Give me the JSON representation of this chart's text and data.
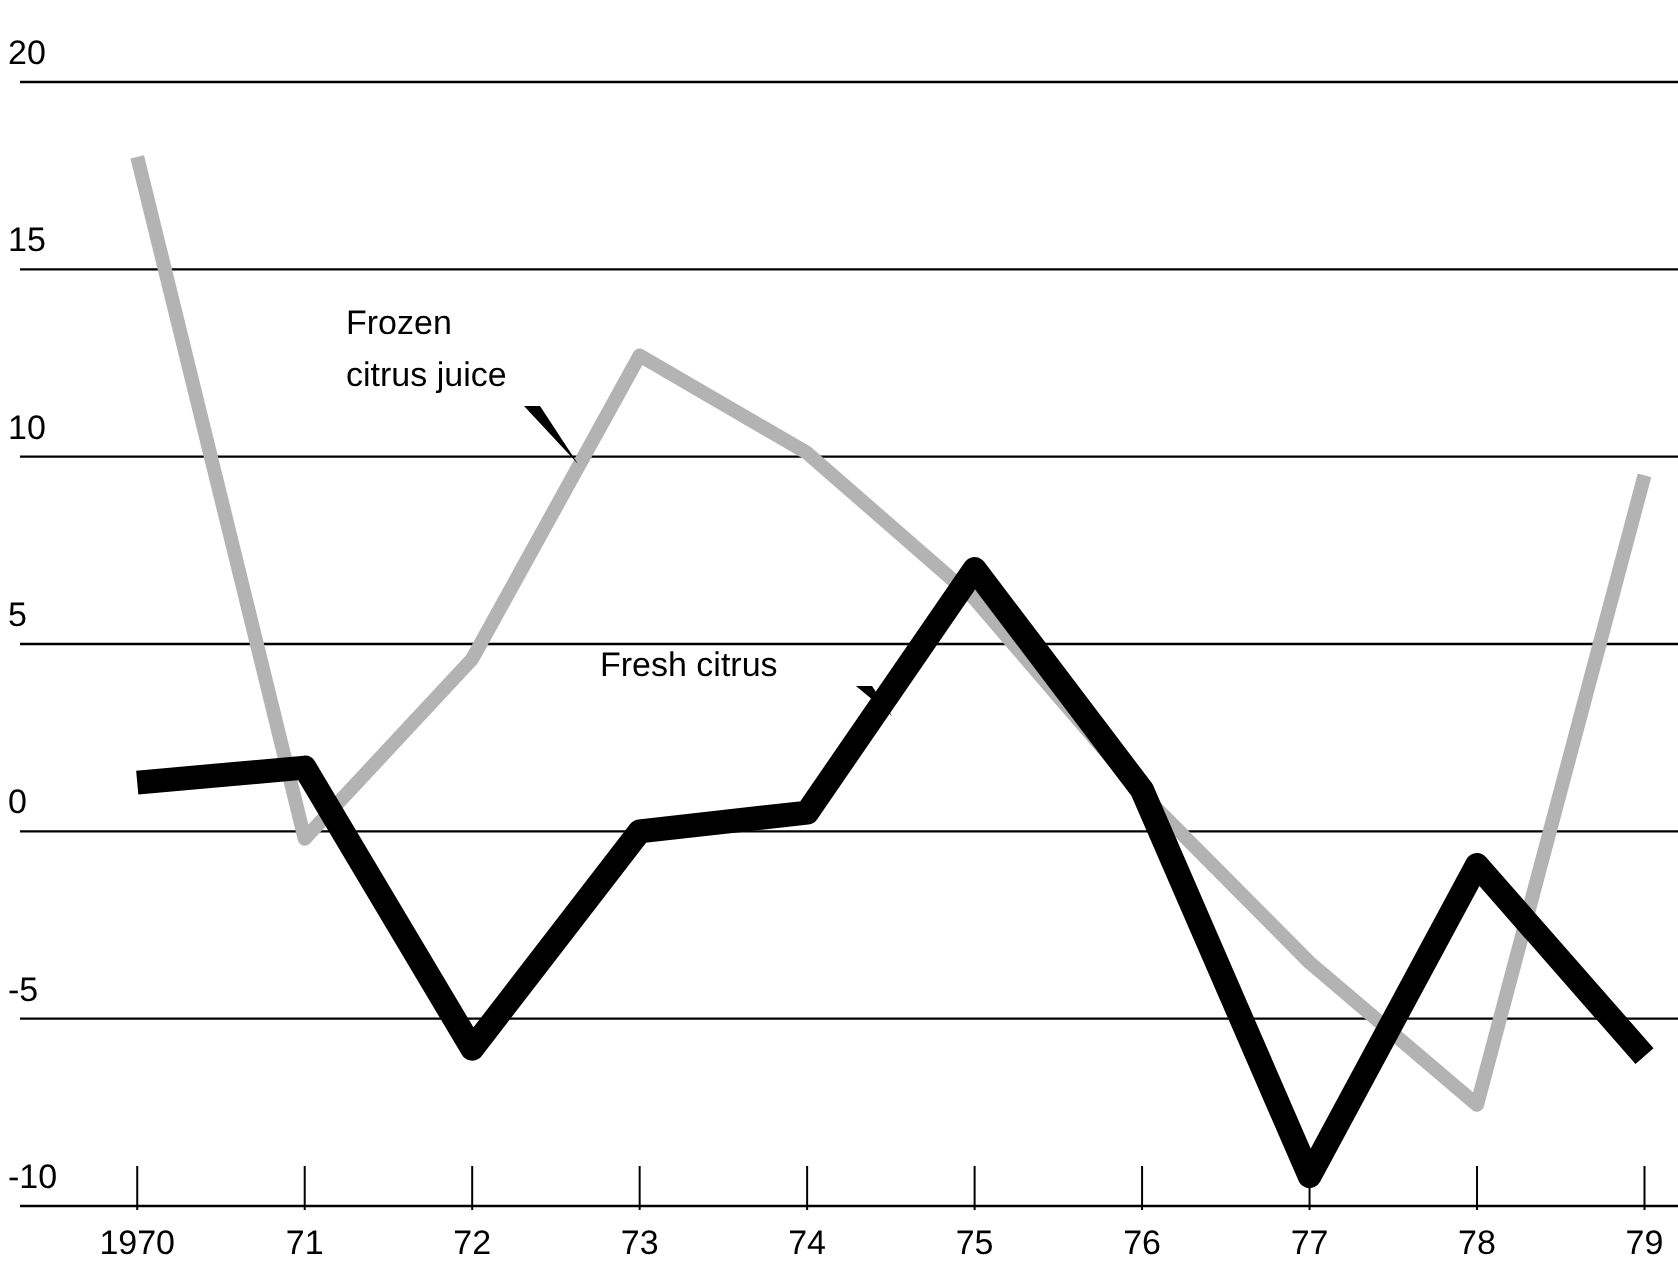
{
  "chart_data": {
    "type": "line",
    "x": [
      1970,
      1971,
      1972,
      1973,
      1974,
      1975,
      1976,
      1977,
      1978,
      1979
    ],
    "series": [
      {
        "name": "Frozen citrus juice",
        "color": "#b3b3b3",
        "values": [
          18,
          -0.2,
          4.6,
          12.7,
          10.1,
          6.2,
          1.0,
          -3.5,
          -7.3,
          9.5
        ]
      },
      {
        "name": "Fresh citrus",
        "color": "#000000",
        "values": [
          1.3,
          1.7,
          -5.8,
          0,
          0.5,
          7,
          1.1,
          -9.2,
          -0.9,
          -6
        ]
      }
    ],
    "xlim": [
      1969.3,
      1979.2
    ],
    "xticks": [
      {
        "value": 1970,
        "label": "1970"
      },
      {
        "value": 1971,
        "label": "71"
      },
      {
        "value": 1972,
        "label": "72"
      },
      {
        "value": 1973,
        "label": "73"
      },
      {
        "value": 1974,
        "label": "74"
      },
      {
        "value": 1975,
        "label": "75"
      },
      {
        "value": 1976,
        "label": "76"
      },
      {
        "value": 1977,
        "label": "77"
      },
      {
        "value": 1978,
        "label": "78"
      },
      {
        "value": 1979,
        "label": "79"
      }
    ],
    "ylim": [
      -10,
      20
    ],
    "yticks": [
      -10,
      -5,
      0,
      5,
      10,
      15,
      20
    ],
    "grid": "y",
    "legend": false,
    "marker": "none",
    "line_style": "solid"
  }
}
